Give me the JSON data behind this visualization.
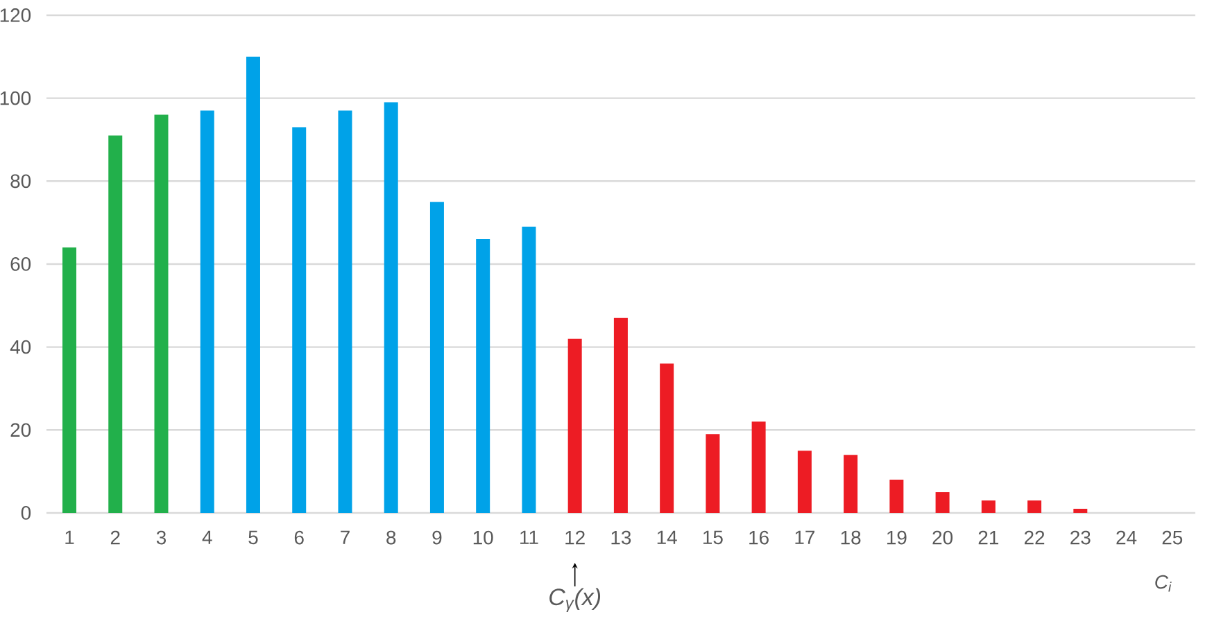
{
  "chart_data": {
    "type": "bar",
    "categories": [
      "1",
      "2",
      "3",
      "4",
      "5",
      "6",
      "7",
      "8",
      "9",
      "10",
      "11",
      "12",
      "13",
      "14",
      "15",
      "16",
      "17",
      "18",
      "19",
      "20",
      "21",
      "22",
      "23",
      "24",
      "25"
    ],
    "values": [
      64,
      91,
      96,
      97,
      110,
      93,
      97,
      99,
      75,
      66,
      69,
      42,
      47,
      36,
      19,
      22,
      15,
      14,
      8,
      5,
      3,
      3,
      1,
      0,
      0
    ],
    "colors": [
      "#22b04b",
      "#22b04b",
      "#22b04b",
      "#00a2e8",
      "#00a2e8",
      "#00a2e8",
      "#00a2e8",
      "#00a2e8",
      "#00a2e8",
      "#00a2e8",
      "#00a2e8",
      "#ed1c24",
      "#ed1c24",
      "#ed1c24",
      "#ed1c24",
      "#ed1c24",
      "#ed1c24",
      "#ed1c24",
      "#ed1c24",
      "#ed1c24",
      "#ed1c24",
      "#ed1c24",
      "#ed1c24",
      "#ed1c24",
      "#ed1c24"
    ],
    "ylim": [
      0,
      120
    ],
    "yticks": [
      0,
      20,
      40,
      60,
      80,
      100,
      120
    ],
    "grid": "y",
    "xlabel": "C$_{i}$",
    "annotations": [
      "C$_{γ}$(x)"
    ]
  }
}
